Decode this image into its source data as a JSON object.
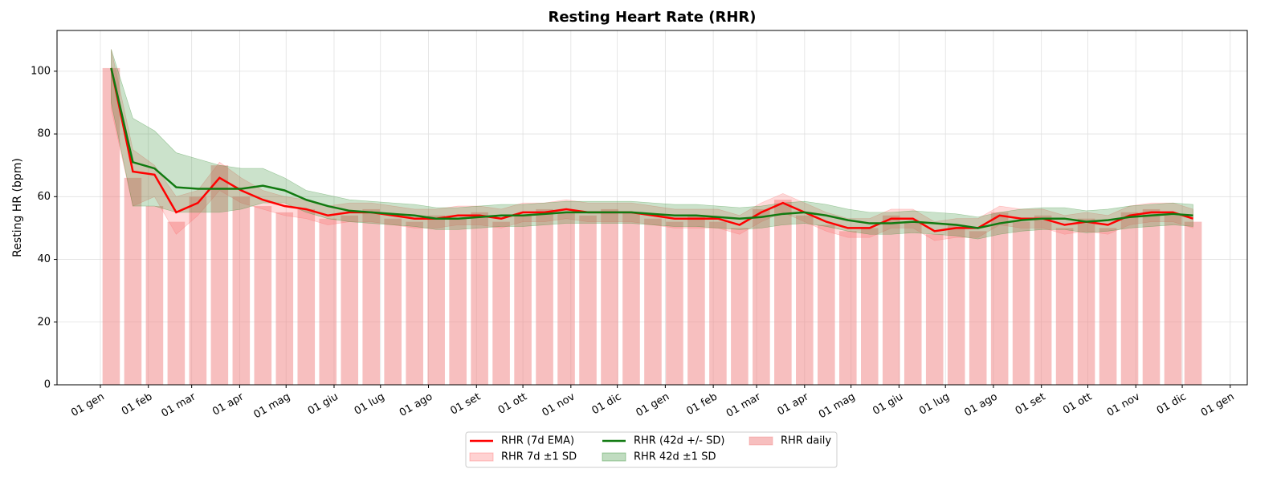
{
  "chart_data": {
    "type": "line",
    "title": "Resting Heart Rate (RHR)",
    "y_label": "Resting HR (bpm)",
    "x": [
      7,
      21,
      35,
      49,
      63,
      77,
      91,
      105,
      119,
      133,
      147,
      161,
      175,
      189,
      203,
      217,
      231,
      245,
      259,
      273,
      287,
      301,
      315,
      329,
      343,
      357,
      371,
      385,
      399,
      413,
      427,
      441,
      455,
      469,
      483,
      497,
      511,
      525,
      539,
      553,
      567,
      581,
      595,
      609,
      623,
      637,
      651,
      665,
      679,
      693,
      706
    ],
    "series": [
      {
        "name": "RHR (7d EMA)",
        "color": "#ff0000",
        "kind": "line",
        "values": [
          101,
          68,
          67,
          55,
          58,
          66,
          62,
          59,
          57,
          56,
          54,
          55,
          55,
          54,
          53,
          53,
          54,
          54,
          53,
          55,
          55,
          56,
          55,
          55,
          55,
          54,
          53,
          53,
          53,
          51,
          55,
          58,
          55,
          52,
          50,
          50,
          53,
          53,
          49,
          50,
          50,
          54,
          53,
          53,
          51,
          52,
          51,
          54,
          55,
          55,
          53
        ]
      },
      {
        "name": "RHR 7d ±1 SD",
        "color": "#ff6b6b",
        "kind": "band",
        "lower": [
          88,
          57,
          60,
          48,
          54,
          62,
          58,
          56,
          54,
          53,
          51,
          52,
          52,
          51,
          50,
          50,
          51,
          51,
          50,
          52,
          52,
          53,
          52,
          52,
          52,
          51,
          50,
          50,
          50,
          48,
          52,
          55,
          52,
          49,
          47,
          47,
          50,
          50,
          46,
          47,
          47,
          51,
          50,
          50,
          48,
          49,
          48,
          51,
          52,
          52,
          50
        ],
        "upper": [
          107,
          75,
          70,
          60,
          62,
          71,
          66,
          62,
          60,
          59,
          57,
          58,
          58,
          57,
          56,
          56,
          57,
          57,
          56,
          58,
          58,
          59,
          58,
          58,
          58,
          57,
          56,
          56,
          56,
          54,
          58,
          61,
          58,
          55,
          53,
          53,
          56,
          56,
          52,
          53,
          53,
          57,
          56,
          56,
          54,
          55,
          54,
          57,
          58,
          58,
          56
        ]
      },
      {
        "name": "RHR (42d +/- SD)",
        "color": "#117a11",
        "kind": "line",
        "values": [
          101,
          71,
          69,
          63,
          62.5,
          62.5,
          62.5,
          63.5,
          62,
          59,
          57,
          55.5,
          55,
          54.5,
          54,
          53,
          53,
          53.5,
          54,
          54,
          54.5,
          55,
          55,
          55,
          55,
          54.5,
          54,
          54,
          53.5,
          53,
          53.5,
          54.5,
          55,
          54,
          52.5,
          51.5,
          51.5,
          52,
          51.5,
          51,
          50,
          51.5,
          52.5,
          53,
          53,
          52,
          52.5,
          53.5,
          54,
          54.5,
          54
        ]
      },
      {
        "name": "RHR 42d ±1 SD",
        "color": "#2e8b2e",
        "kind": "band",
        "lower": [
          90,
          57,
          57,
          55,
          55,
          55,
          56,
          58,
          58,
          55,
          53,
          52,
          51.5,
          51,
          50.5,
          49.5,
          49.5,
          50,
          50.5,
          50.5,
          51,
          51.5,
          51.5,
          51.5,
          51.5,
          51,
          50.5,
          50.5,
          50,
          49.5,
          50,
          51,
          51.5,
          50.5,
          49,
          48,
          48,
          48.5,
          48,
          47.5,
          46.5,
          48,
          49,
          49.5,
          49.5,
          48.5,
          49,
          50,
          50.5,
          51,
          50.5
        ],
        "upper": [
          107,
          85,
          81,
          74,
          72,
          70,
          69,
          69,
          66,
          62,
          60.5,
          59,
          58.5,
          58,
          57.5,
          56.5,
          56.5,
          57,
          57.5,
          57.5,
          58,
          58.5,
          58.5,
          58.5,
          58.5,
          58,
          57.5,
          57.5,
          57,
          56.5,
          57,
          58,
          58.5,
          57.5,
          56,
          55,
          55,
          55.5,
          55,
          54.5,
          53.5,
          55,
          56,
          56.5,
          56.5,
          55.5,
          56,
          57,
          57.5,
          58,
          57.5
        ]
      },
      {
        "name": "RHR daily",
        "color": "#f08080",
        "kind": "bar",
        "values": [
          101,
          66,
          57,
          52,
          60,
          70,
          60,
          57,
          55,
          56,
          53,
          54,
          56,
          53,
          52,
          54,
          53,
          55,
          52,
          54,
          56,
          55,
          54,
          56,
          55,
          53,
          52,
          54,
          52,
          50,
          56,
          59,
          54,
          51,
          49,
          50,
          54,
          52,
          48,
          51,
          49,
          55,
          52,
          54,
          50,
          53,
          50,
          55,
          56,
          54,
          52
        ]
      }
    ],
    "xlim": [
      -28,
      741
    ],
    "ylim": [
      0,
      113
    ],
    "yticks": [
      0,
      20,
      40,
      60,
      80,
      100
    ],
    "xticks": [
      {
        "value": 0,
        "label": "01 gen"
      },
      {
        "value": 31,
        "label": "01 feb"
      },
      {
        "value": 59,
        "label": "01 mar"
      },
      {
        "value": 90,
        "label": "01 apr"
      },
      {
        "value": 120,
        "label": "01 mag"
      },
      {
        "value": 151,
        "label": "01 giu"
      },
      {
        "value": 181,
        "label": "01 lug"
      },
      {
        "value": 212,
        "label": "01 ago"
      },
      {
        "value": 243,
        "label": "01 set"
      },
      {
        "value": 273,
        "label": "01 ott"
      },
      {
        "value": 304,
        "label": "01 nov"
      },
      {
        "value": 334,
        "label": "01 dic"
      },
      {
        "value": 365,
        "label": "01 gen"
      },
      {
        "value": 396,
        "label": "01 feb"
      },
      {
        "value": 424,
        "label": "01 mar"
      },
      {
        "value": 455,
        "label": "01 apr"
      },
      {
        "value": 485,
        "label": "01 mag"
      },
      {
        "value": 516,
        "label": "01 giu"
      },
      {
        "value": 546,
        "label": "01 lug"
      },
      {
        "value": 577,
        "label": "01 ago"
      },
      {
        "value": 608,
        "label": "01 set"
      },
      {
        "value": 638,
        "label": "01 ott"
      },
      {
        "value": 669,
        "label": "01 nov"
      },
      {
        "value": 699,
        "label": "01 dic"
      },
      {
        "value": 730,
        "label": "01 gen"
      }
    ],
    "grid": true,
    "legend": "lower center"
  }
}
